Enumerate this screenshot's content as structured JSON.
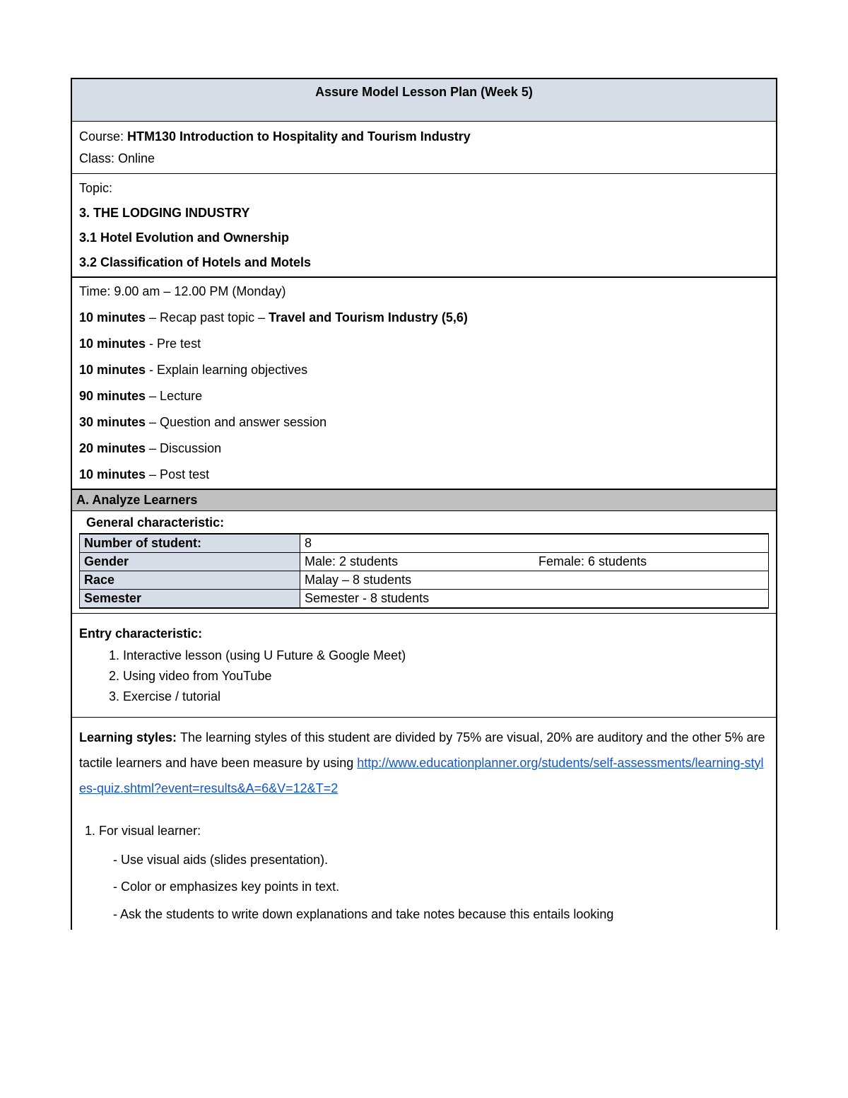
{
  "header": {
    "title": "Assure Model Lesson Plan (Week 5)"
  },
  "course": {
    "label": "Course: ",
    "name": "HTM130 Introduction to Hospitality and Tourism Industry",
    "class_label": "Class: ",
    "class_value": "Online"
  },
  "topic": {
    "label": "Topic:",
    "l1": "3. THE LODGING INDUSTRY",
    "l2": "3.1 Hotel Evolution and Ownership",
    "l3": "3.2 Classification of Hotels and Motels"
  },
  "time": {
    "heading": "Time: 9.00 am – 12.00 PM (Monday)",
    "items": [
      {
        "b1": "10 minutes",
        "mid": " – Recap past topic – ",
        "b2": "Travel and Tourism Industry (5,6)"
      },
      {
        "b1": "10 minutes",
        "mid": " - Pre test",
        "b2": ""
      },
      {
        "b1": "10 minutes",
        "mid": " -  Explain learning objectives",
        "b2": ""
      },
      {
        "b1": "90 minutes",
        "mid": " – Lecture",
        "b2": ""
      },
      {
        "b1": "30 minutes",
        "mid": " – Question and answer session",
        "b2": ""
      },
      {
        "b1": "20 minutes",
        "mid": " – Discussion",
        "b2": ""
      },
      {
        "b1": "10 minutes",
        "mid": " – Post test",
        "b2": ""
      }
    ]
  },
  "analyze": {
    "header": "A.    Analyze Learners",
    "gc_title": "General characteristic:",
    "rows": {
      "r0": {
        "label": "Number of student:",
        "c1": "8",
        "c2": ""
      },
      "r1": {
        "label": "Gender",
        "c1": "Male: 2 students",
        "c2": "Female: 6 students"
      },
      "r2": {
        "label": "Race",
        "c1": "Malay – 8 students",
        "c2": ""
      },
      "r3": {
        "label": "Semester",
        "c1": "Semester - 8 students",
        "c2": ""
      }
    }
  },
  "entry": {
    "title": "Entry characteristic:",
    "items": {
      "i0": "Interactive lesson (using U Future & Google Meet)",
      "i1": "Using video from YouTube",
      "i2": "Exercise / tutorial"
    }
  },
  "ls": {
    "lead_b": "Learning styles: ",
    "lead": "The learning styles of this student are divided by 75% are visual, 20% are auditory and the other 5% are tactile learners  and have been measure by using ",
    "link": "http://www.educationplanner.org/students/self-assessments/learning-styles-quiz.shtml?event=results&A=6&V=12&T=2",
    "sub_num": "1.  For visual learner:",
    "d1": "- Use visual aids (slides presentation).",
    "d2": "- Color or emphasizes key points in text.",
    "d3": "- Ask the students to write down explanations and take notes because this entails looking"
  }
}
